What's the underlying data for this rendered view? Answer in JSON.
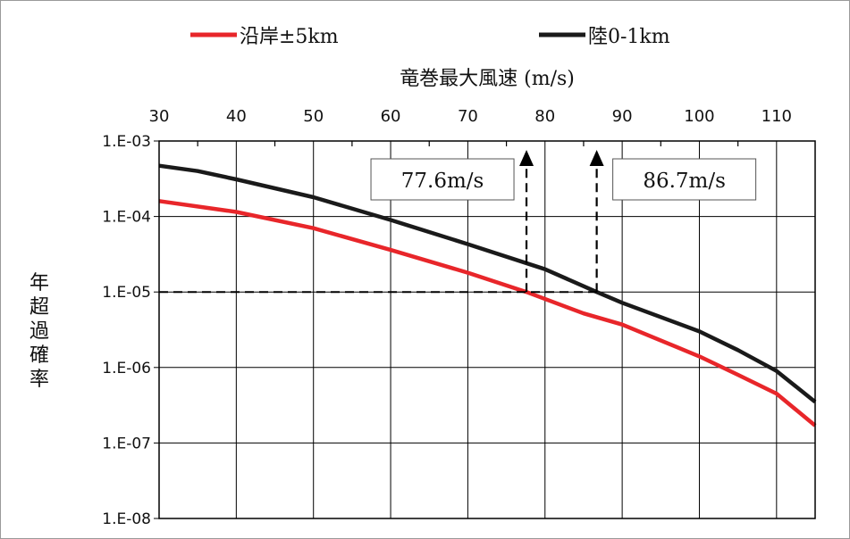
{
  "chart_data": {
    "type": "line",
    "xlabel": "竜巻最大風速 (m/s)",
    "ylabel": "年超過確率",
    "xlim": [
      30,
      115
    ],
    "xticks": [
      "30",
      "40",
      "50",
      "60",
      "70",
      "80",
      "90",
      "100",
      "110"
    ],
    "xtick_values": [
      30,
      40,
      50,
      60,
      70,
      80,
      90,
      100,
      110
    ],
    "y_scale": "log",
    "ylim": [
      1e-08,
      0.001
    ],
    "yticks": [
      "1.E-03",
      "1.E-04",
      "1.E-05",
      "1.E-06",
      "1.E-07",
      "1.E-08"
    ],
    "ytick_values": [
      0.001,
      0.0001,
      1e-05,
      1e-06,
      1e-07,
      1e-08
    ],
    "grid": true,
    "legend_position": "top",
    "series": [
      {
        "name": "沿岸±5km",
        "color": "#e8262a",
        "x": [
          30,
          40,
          50,
          60,
          70,
          77.6,
          85,
          90,
          100,
          105,
          110,
          115
        ],
        "y": [
          0.00016,
          0.000115,
          7e-05,
          3.6e-05,
          1.8e-05,
          1e-05,
          5.2e-06,
          3.7e-06,
          1.4e-06,
          8e-07,
          4.5e-07,
          1.7e-07
        ]
      },
      {
        "name": "陸0-1km",
        "color": "#1a1a1a",
        "x": [
          30,
          35,
          40,
          50,
          60,
          70,
          80,
          86.7,
          90,
          100,
          105,
          110,
          115
        ],
        "y": [
          0.00047,
          0.0004,
          0.00031,
          0.00018,
          9e-05,
          4.3e-05,
          2e-05,
          1e-05,
          7.2e-06,
          3e-06,
          1.7e-06,
          9e-07,
          3.5e-07
        ]
      }
    ],
    "annotations": [
      {
        "label": "77.6m/s",
        "x": 77.6,
        "y": 1e-05
      },
      {
        "label": "86.7m/s",
        "x": 86.7,
        "y": 1e-05
      }
    ],
    "reference_line": {
      "y": 1e-05
    }
  }
}
